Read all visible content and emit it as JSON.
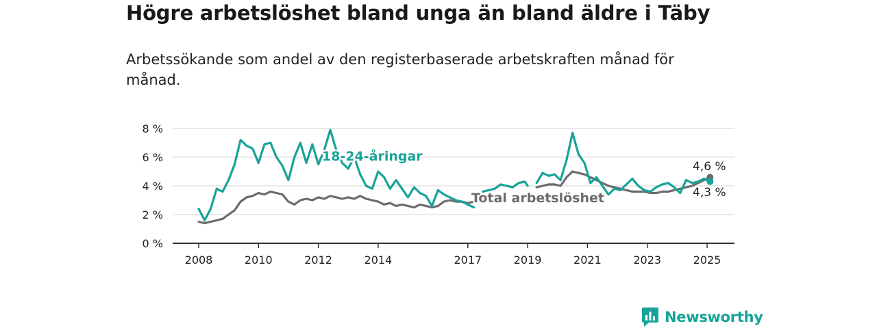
{
  "title": "Högre arbetslöshet bland unga än bland äldre i Täby",
  "subtitle": "Arbetssökande som andel av den registerbaserade arbetskraften månad för månad.",
  "brand": {
    "name": "Newsworthy",
    "color": "#17a398"
  },
  "chart_data": {
    "type": "line",
    "grid": true,
    "y_ticks": [
      "0 %",
      "2 %",
      "4 %",
      "6 %",
      "8 %"
    ],
    "ylim": [
      0,
      8
    ],
    "xlim": [
      2008.0,
      2025.9
    ],
    "x_ticks": [
      {
        "label": "2008",
        "x": 2008.0
      },
      {
        "label": "2010",
        "x": 2010.0
      },
      {
        "label": "2012",
        "x": 2012.0
      },
      {
        "label": "2014",
        "x": 2014.0
      },
      {
        "label": "2017",
        "x": 2017.0
      },
      {
        "label": "2019",
        "x": 2019.0
      },
      {
        "label": "2021",
        "x": 2021.0
      },
      {
        "label": "2023",
        "x": 2023.0
      },
      {
        "label": "2025",
        "x": 2025.0
      }
    ],
    "series": [
      {
        "name": "18-24-åringar",
        "color": "#17a398",
        "end_label": "4,3 %",
        "segments": [
          {
            "x": [
              2008.0,
              2008.2,
              2008.4,
              2008.6,
              2008.8,
              2009.0,
              2009.2,
              2009.4,
              2009.6,
              2009.8,
              2010.0,
              2010.2,
              2010.4,
              2010.6,
              2010.8,
              2011.0,
              2011.2,
              2011.4,
              2011.6,
              2011.8,
              2012.0,
              2012.2,
              2012.4,
              2012.6,
              2012.8,
              2013.0,
              2013.2,
              2013.4,
              2013.6,
              2013.8,
              2014.0,
              2014.2,
              2014.4,
              2014.6,
              2014.8,
              2015.0,
              2015.2,
              2015.4,
              2015.6,
              2015.8,
              2016.0,
              2016.2,
              2016.4,
              2016.6,
              2016.8,
              2017.0,
              2017.2
            ],
            "y": [
              2.4,
              1.6,
              2.4,
              3.8,
              3.6,
              4.4,
              5.5,
              7.2,
              6.8,
              6.6,
              5.6,
              6.9,
              7.0,
              6.0,
              5.4,
              4.4,
              6.0,
              7.0,
              5.6,
              6.9,
              5.5,
              6.5,
              7.9,
              6.5,
              5.6,
              5.2,
              6.0,
              4.8,
              4.0,
              3.8,
              5.0,
              4.6,
              3.8,
              4.4,
              3.8,
              3.2,
              3.9,
              3.5,
              3.3,
              2.6,
              3.7,
              3.4,
              3.2,
              3.0,
              2.9,
              2.7,
              2.5
            ]
          },
          {
            "x": [
              2017.5,
              2017.7,
              2017.9,
              2018.1,
              2018.3,
              2018.5,
              2018.7,
              2018.9,
              2019.0
            ],
            "y": [
              3.6,
              3.7,
              3.8,
              4.1,
              4.0,
              3.9,
              4.2,
              4.3,
              4.0
            ]
          },
          {
            "x": [
              2019.3,
              2019.5,
              2019.7,
              2019.9,
              2020.1,
              2020.3,
              2020.5,
              2020.7,
              2020.9,
              2021.1,
              2021.3,
              2021.5,
              2021.7,
              2021.9,
              2022.1,
              2022.3,
              2022.5,
              2022.7,
              2022.9,
              2023.1,
              2023.3,
              2023.5,
              2023.7,
              2023.9,
              2024.1,
              2024.3,
              2024.5,
              2024.7,
              2024.9,
              2025.1
            ],
            "y": [
              4.2,
              4.9,
              4.7,
              4.8,
              4.4,
              5.8,
              7.7,
              6.2,
              5.6,
              4.2,
              4.6,
              4.0,
              3.4,
              3.8,
              3.7,
              4.1,
              4.5,
              4.0,
              3.7,
              3.6,
              3.9,
              4.1,
              4.2,
              3.9,
              3.5,
              4.4,
              4.2,
              4.3,
              4.5,
              4.3
            ]
          }
        ]
      },
      {
        "name": "Total arbetslöshet",
        "color": "#6d6b70",
        "end_label": "4,6 %",
        "segments": [
          {
            "x": [
              2008.0,
              2008.2,
              2008.4,
              2008.6,
              2008.8,
              2009.0,
              2009.2,
              2009.4,
              2009.6,
              2009.8,
              2010.0,
              2010.2,
              2010.4,
              2010.6,
              2010.8,
              2011.0,
              2011.2,
              2011.4,
              2011.6,
              2011.8,
              2012.0,
              2012.2,
              2012.4,
              2012.6,
              2012.8,
              2013.0,
              2013.2,
              2013.4,
              2013.6,
              2013.8,
              2014.0,
              2014.2,
              2014.4,
              2014.6,
              2014.8,
              2015.0,
              2015.2,
              2015.4,
              2015.6,
              2015.8,
              2016.0,
              2016.2,
              2016.4,
              2016.6,
              2016.8,
              2017.0,
              2017.2
            ],
            "y": [
              1.5,
              1.4,
              1.5,
              1.6,
              1.7,
              2.0,
              2.3,
              2.9,
              3.2,
              3.3,
              3.5,
              3.4,
              3.6,
              3.5,
              3.4,
              2.9,
              2.7,
              3.0,
              3.1,
              3.0,
              3.2,
              3.1,
              3.3,
              3.2,
              3.1,
              3.2,
              3.1,
              3.3,
              3.1,
              3.0,
              2.9,
              2.7,
              2.8,
              2.6,
              2.7,
              2.6,
              2.5,
              2.7,
              2.6,
              2.5,
              2.6,
              2.9,
              3.0,
              2.9,
              2.9,
              2.8,
              2.9
            ]
          },
          {
            "x": [
              2019.3,
              2019.5,
              2019.7,
              2019.9,
              2020.1,
              2020.3,
              2020.5,
              2020.7,
              2020.9,
              2021.1,
              2021.3,
              2021.5,
              2021.7,
              2021.9,
              2022.1,
              2022.3,
              2022.5,
              2022.7,
              2022.9,
              2023.1,
              2023.3,
              2023.5,
              2023.7,
              2023.9,
              2024.1,
              2024.3,
              2024.5,
              2024.7,
              2024.9,
              2025.1
            ],
            "y": [
              3.9,
              4.0,
              4.1,
              4.1,
              4.0,
              4.6,
              5.0,
              4.9,
              4.8,
              4.6,
              4.4,
              4.2,
              4.0,
              3.9,
              3.8,
              3.7,
              3.6,
              3.6,
              3.6,
              3.5,
              3.5,
              3.6,
              3.6,
              3.7,
              3.8,
              3.9,
              4.0,
              4.2,
              4.4,
              4.6
            ]
          }
        ]
      }
    ]
  }
}
